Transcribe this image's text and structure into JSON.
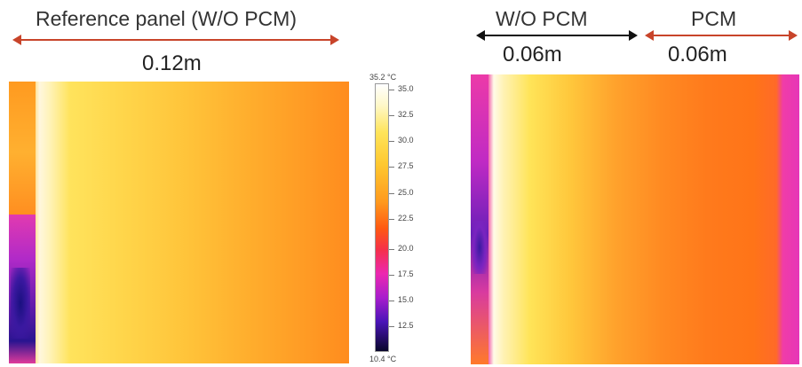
{
  "left_panel": {
    "title": "Reference panel (W/O PCM)",
    "dimension": "0.12m"
  },
  "right_panel": {
    "section_left_title": "W/O PCM",
    "section_left_dimension": "0.06m",
    "section_right_title": "PCM",
    "section_right_dimension": "0.06m"
  },
  "color_scale": {
    "max_label": "35.2 °C",
    "min_label": "10.4 °C",
    "ticks": [
      "35.0",
      "32.5",
      "30.0",
      "27.5",
      "25.0",
      "22.5",
      "20.0",
      "17.5",
      "15.0",
      "12.5"
    ]
  },
  "colors": {
    "arrow_red": "#c8442a",
    "arrow_black": "#111111"
  }
}
